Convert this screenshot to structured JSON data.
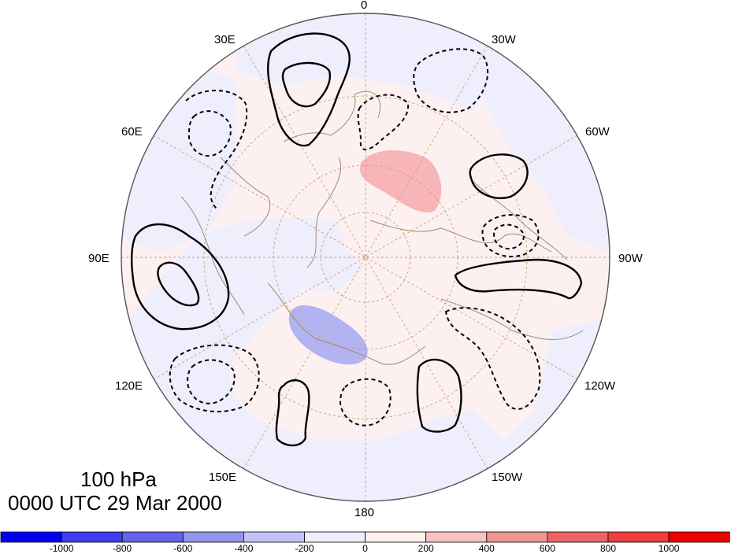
{
  "lon_labels": {
    "north": "0",
    "deg30e": "30E",
    "deg30w": "30W",
    "deg60e": "60E",
    "deg60w": "60W",
    "deg90e": "90E",
    "deg90w": "90W",
    "deg120e": "120E",
    "deg120w": "120W",
    "deg150e": "150E",
    "deg150w": "150W",
    "south": "180"
  },
  "caption": {
    "level": "100 hPa",
    "time": "0000 UTC 29 Mar 2000"
  },
  "colorbar": {
    "ticks": [
      "-1000",
      "-800",
      "-600",
      "-400",
      "-200",
      "0",
      "200",
      "400",
      "600",
      "800",
      "1000"
    ],
    "colors": [
      "#0000f2",
      "#3d3df0",
      "#6363ec",
      "#9494f0",
      "#c2c2f8",
      "#eeeefd",
      "#fff0ee",
      "#f8c2c2",
      "#f09494",
      "#ec6363",
      "#f03d3d",
      "#f20000"
    ]
  },
  "map": {
    "projection": "polar stereographic, north pole",
    "shading_colors": {
      "weak_positive": "#fcefee",
      "weak_negative": "#eeeefd",
      "positive": "#f7b5b8",
      "negative": "#b3b3f3"
    },
    "contours": {
      "positive": "solid black",
      "negative": "dashed black"
    }
  }
}
